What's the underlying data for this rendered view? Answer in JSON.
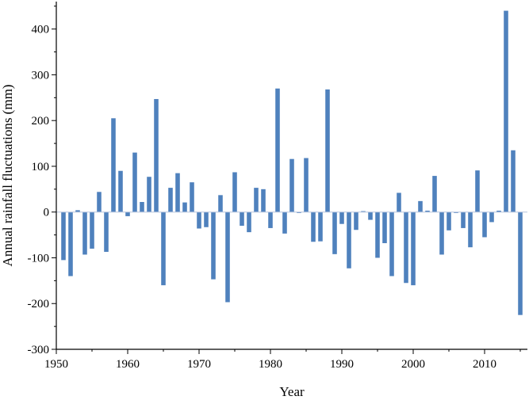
{
  "chart_data": {
    "type": "bar",
    "xlabel": "Year",
    "ylabel": "Annual rainfall fluctuations (mm)",
    "xlim": [
      1950,
      2016
    ],
    "ylim": [
      -300,
      460
    ],
    "x_ticks": [
      1950,
      1960,
      1970,
      1980,
      1990,
      2000,
      2010
    ],
    "y_ticks": [
      -300,
      -200,
      -100,
      0,
      100,
      200,
      300,
      400
    ],
    "bar_color": "#4f81bd",
    "grid": false,
    "legend": "none",
    "x": [
      1951,
      1952,
      1953,
      1954,
      1955,
      1956,
      1957,
      1958,
      1959,
      1960,
      1961,
      1962,
      1963,
      1964,
      1965,
      1966,
      1967,
      1968,
      1969,
      1970,
      1971,
      1972,
      1973,
      1974,
      1975,
      1976,
      1977,
      1978,
      1979,
      1980,
      1981,
      1982,
      1983,
      1984,
      1985,
      1986,
      1987,
      1988,
      1989,
      1990,
      1991,
      1992,
      1993,
      1994,
      1995,
      1996,
      1997,
      1998,
      1999,
      2000,
      2001,
      2002,
      2003,
      2004,
      2005,
      2006,
      2007,
      2008,
      2009,
      2010,
      2011,
      2012,
      2013,
      2014,
      2015
    ],
    "values": [
      -105,
      -140,
      4,
      -93,
      -80,
      44,
      -87,
      205,
      90,
      -9,
      130,
      22,
      77,
      247,
      -160,
      53,
      85,
      21,
      65,
      -36,
      -33,
      -147,
      37,
      -197,
      87,
      -30,
      -44,
      53,
      50,
      -35,
      270,
      -47,
      116,
      -2,
      118,
      -65,
      -64,
      268,
      -92,
      -26,
      -123,
      -39,
      2,
      -17,
      -100,
      -68,
      -140,
      42,
      -155,
      -160,
      24,
      3,
      79,
      -93,
      -40,
      -2,
      -35,
      -77,
      91,
      -55,
      -22,
      3,
      440,
      135,
      -225
    ]
  }
}
